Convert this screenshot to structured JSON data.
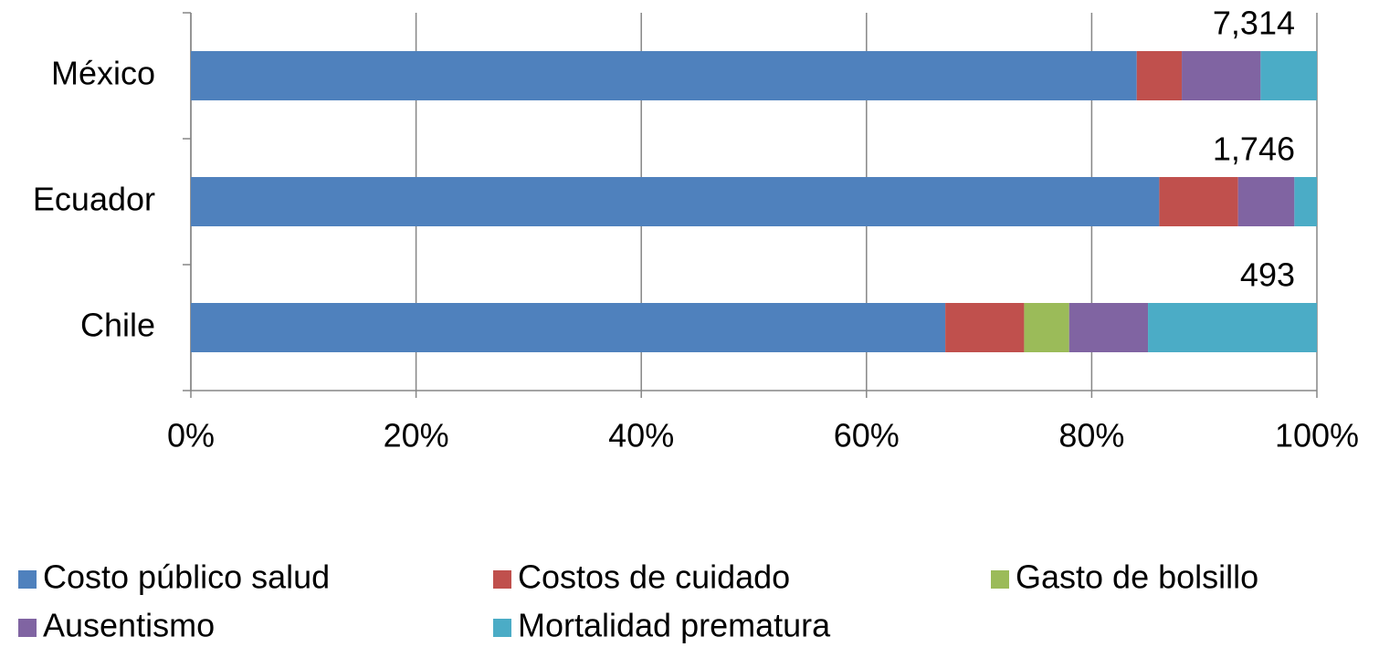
{
  "chart_data": {
    "type": "stacked_bar_horizontal",
    "categories": [
      "México",
      "Ecuador",
      "Chile"
    ],
    "series": [
      {
        "name": "Costo público salud",
        "color": "#4f81bd",
        "values": [
          84,
          86,
          67
        ]
      },
      {
        "name": "Costos de cuidado",
        "color": "#c0504d",
        "values": [
          4,
          7,
          7
        ]
      },
      {
        "name": "Gasto de bolsillo",
        "color": "#9bbb59",
        "values": [
          0,
          0,
          4
        ]
      },
      {
        "name": "Ausentismo",
        "color": "#8064a2",
        "values": [
          7,
          5,
          7
        ]
      },
      {
        "name": "Mortalidad prematura",
        "color": "#4bacc6",
        "values": [
          5,
          2,
          15
        ]
      }
    ],
    "totals": {
      "values": [
        7314,
        1746,
        493
      ],
      "value_labels": [
        "7,314",
        "1,746",
        "493"
      ]
    },
    "xlim": [
      0,
      100
    ],
    "xticks": [
      {
        "value": 0,
        "label": "0%"
      },
      {
        "value": 20,
        "label": "20%"
      },
      {
        "value": 40,
        "label": "40%"
      },
      {
        "value": 60,
        "label": "60%"
      },
      {
        "value": 80,
        "label": "80%"
      },
      {
        "value": 100,
        "label": "100%"
      }
    ],
    "grid": true,
    "legend": "bottom"
  }
}
